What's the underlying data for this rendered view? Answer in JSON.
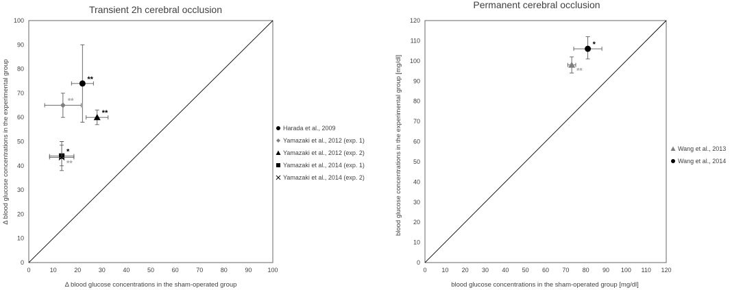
{
  "chart_data": [
    {
      "type": "scatter",
      "title": "Transient 2h cerebral occlusion",
      "xlabel": "Δ blood glucose concentrations in the sham-operated group",
      "ylabel": "Δ blood glucose concentrations in the experimental group",
      "xlim": [
        0,
        100
      ],
      "ylim": [
        0,
        100
      ],
      "xticks": [
        0,
        10,
        20,
        30,
        40,
        50,
        60,
        70,
        80,
        90,
        100
      ],
      "yticks": [
        0,
        10,
        20,
        30,
        40,
        50,
        60,
        70,
        80,
        90,
        100
      ],
      "grid": false,
      "identity_line": true,
      "legend_position": "right",
      "series": [
        {
          "name": "Harada et al., 2009",
          "marker": "circle",
          "color": "#000000",
          "x": 22,
          "y": 74,
          "xerr": 4.5,
          "yerr_low": 16,
          "yerr_high": 16,
          "annotation": "**",
          "annotation_color": "#000000"
        },
        {
          "name": "Yamazaki et al., 2012 (exp. 1)",
          "marker": "diamond",
          "color": "#7f7f7f",
          "x": 14,
          "y": 65,
          "xerr": 7.5,
          "yerr_low": 5,
          "yerr_high": 5,
          "annotation": "**",
          "annotation_color": "#a6a6a6"
        },
        {
          "name": "Yamazaki et al., 2012 (exp. 2)",
          "marker": "triangle",
          "color": "#000000",
          "x": 28,
          "y": 60,
          "xerr": 4.5,
          "yerr_low": 3,
          "yerr_high": 3,
          "annotation": "**",
          "annotation_color": "#000000"
        },
        {
          "name": "Yamazaki et al., 2014 (exp. 1)",
          "marker": "square",
          "color": "#000000",
          "x": 13.5,
          "y": 44,
          "xerr": 5,
          "yerr_low": 4,
          "yerr_high": 6,
          "annotation": "*",
          "annotation_color": "#000000"
        },
        {
          "name": "Yamazaki et al., 2014 (exp. 2)",
          "marker": "x",
          "color": "#000000",
          "x": 13.5,
          "y": 43.5,
          "xerr": 5,
          "yerr_low": 5.5,
          "yerr_high": 5,
          "annotation": "**",
          "annotation_color": "#a6a6a6"
        }
      ]
    },
    {
      "type": "scatter",
      "title": "Permanent cerebral occlusion",
      "xlabel": "blood glucose concentrations in the sham-operated group [mg/dl]",
      "ylabel": "blood glucose concentrations in the experimental group [mg/dl]",
      "xlim": [
        0,
        120
      ],
      "ylim": [
        0,
        120
      ],
      "xticks": [
        0,
        10,
        20,
        30,
        40,
        50,
        60,
        70,
        80,
        90,
        100,
        110,
        120
      ],
      "yticks": [
        0,
        10,
        20,
        30,
        40,
        50,
        60,
        70,
        80,
        90,
        100,
        110,
        120
      ],
      "grid": false,
      "identity_line": true,
      "legend_position": "right",
      "series": [
        {
          "name": "Wang et al., 2013",
          "marker": "triangle",
          "color": "#7f7f7f",
          "x": 73,
          "y": 98,
          "xerr": 2,
          "yerr_low": 4,
          "yerr_high": 4,
          "annotation": "**",
          "annotation_color": "#a6a6a6"
        },
        {
          "name": "Wang et al., 2014",
          "marker": "circle",
          "color": "#000000",
          "x": 81,
          "y": 106,
          "xerr": 7,
          "yerr_low": 5,
          "yerr_high": 6,
          "annotation": "*",
          "annotation_color": "#000000"
        }
      ]
    }
  ]
}
